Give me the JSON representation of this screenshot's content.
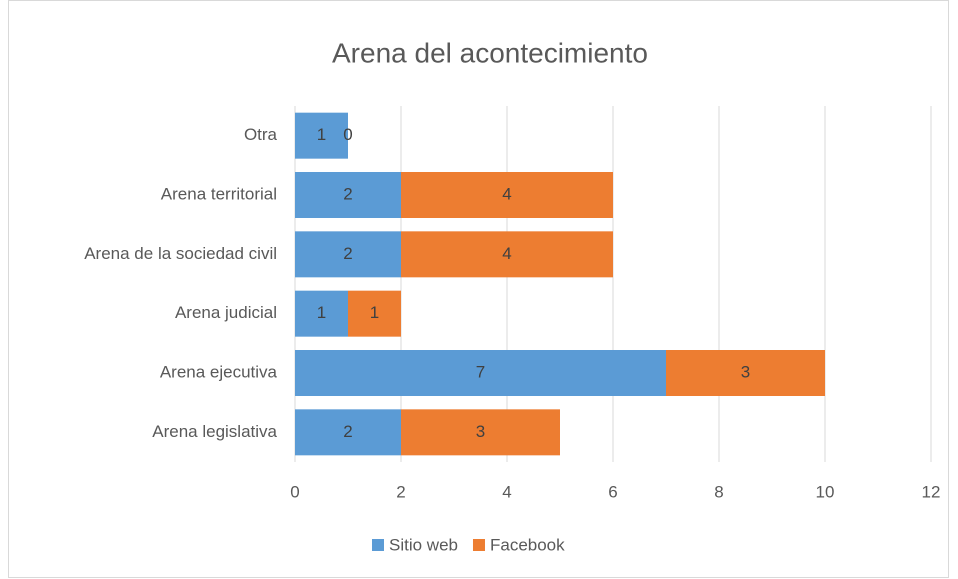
{
  "chart_data": {
    "type": "stacked_barh",
    "title": "Arena del acontecimiento",
    "categories": [
      "Otra",
      "Arena territorial",
      "Arena de la sociedad civil",
      "Arena judicial",
      "Arena ejecutiva",
      "Arena legislativa"
    ],
    "series": [
      {
        "name": "Sitio web",
        "color": "#5b9bd5",
        "values": [
          1,
          2,
          2,
          1,
          7,
          2
        ]
      },
      {
        "name": "Facebook",
        "color": "#ed7d31",
        "values": [
          0,
          4,
          4,
          1,
          3,
          3
        ]
      }
    ],
    "xlim": [
      0,
      12
    ],
    "xticks": [
      0,
      2,
      4,
      6,
      8,
      10,
      12
    ],
    "grid": true,
    "legend": "bottom"
  }
}
